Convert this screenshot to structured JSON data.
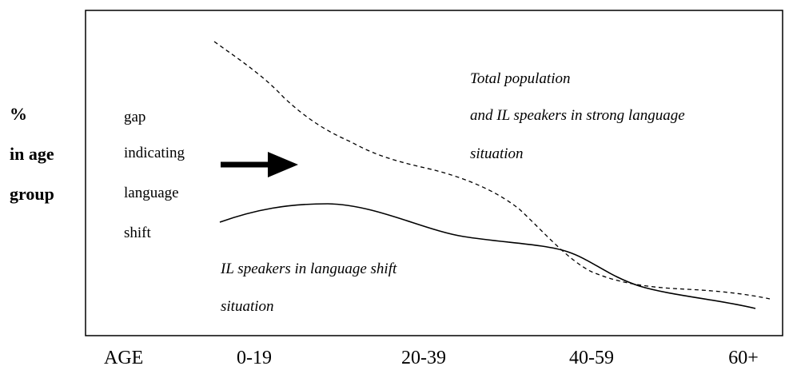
{
  "y_axis_label": [
    "%",
    "in age",
    "group"
  ],
  "x_labels": [
    "AGE",
    "0-19",
    "20-39",
    "40-59",
    "60+"
  ],
  "gap_note": [
    "gap",
    "indicating",
    "language",
    "shift"
  ],
  "upper_curve_note": [
    "Total population",
    "and IL speakers in strong language",
    "situation"
  ],
  "lower_curve_note": [
    "IL speakers in language shift",
    "situation"
  ]
}
